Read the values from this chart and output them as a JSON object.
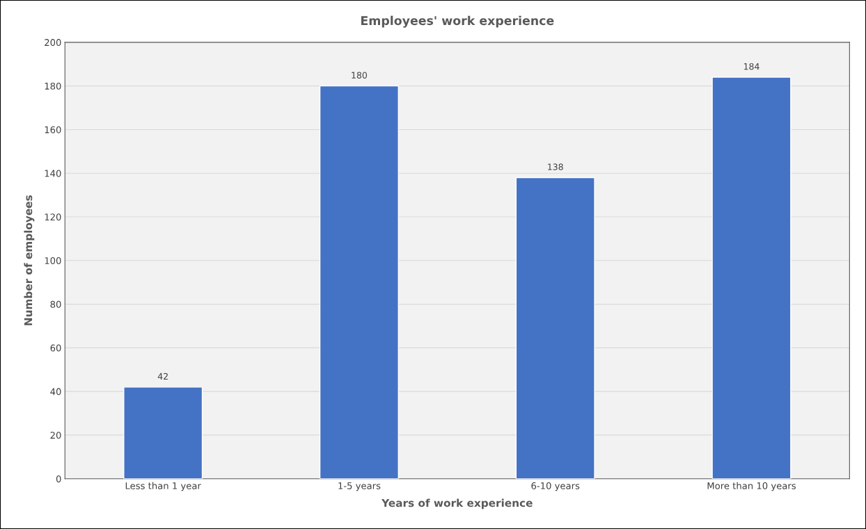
{
  "chart_data": {
    "type": "bar",
    "title": "Employees' work experience",
    "xlabel": "Years of work experience",
    "ylabel": "Number of employees",
    "categories": [
      "Less than 1 year",
      "1-5 years",
      "6-10 years",
      "More than 10 years"
    ],
    "values": [
      42,
      180,
      138,
      184
    ],
    "color": "#4472c4",
    "ylim": [
      0,
      200
    ],
    "yticks": [
      0,
      20,
      40,
      60,
      80,
      100,
      120,
      140,
      160,
      180,
      200
    ],
    "grid": "y",
    "data_labels": true
  }
}
